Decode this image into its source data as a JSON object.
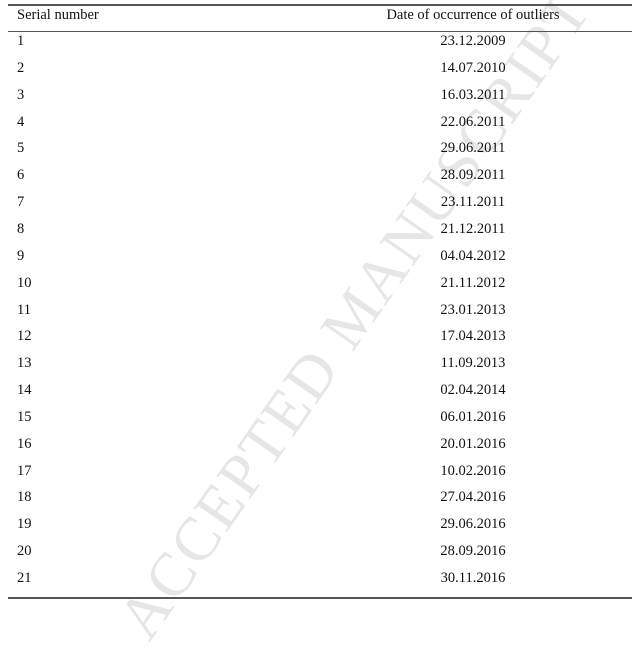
{
  "watermark": "ACCEPTED MANUSCRIPT",
  "table": {
    "headers": [
      "Serial number",
      "Date of occurrence of outliers"
    ],
    "rows": [
      [
        "1",
        "23.12.2009"
      ],
      [
        "2",
        "14.07.2010"
      ],
      [
        "3",
        "16.03.2011"
      ],
      [
        "4",
        "22.06.2011"
      ],
      [
        "5",
        "29.06.2011"
      ],
      [
        "6",
        "28.09.2011"
      ],
      [
        "7",
        "23.11.2011"
      ],
      [
        "8",
        "21.12.2011"
      ],
      [
        "9",
        "04.04.2012"
      ],
      [
        "10",
        "21.11.2012"
      ],
      [
        "11",
        "23.01.2013"
      ],
      [
        "12",
        "17.04.2013"
      ],
      [
        "13",
        "11.09.2013"
      ],
      [
        "14",
        "02.04.2014"
      ],
      [
        "15",
        "06.01.2016"
      ],
      [
        "16",
        "20.01.2016"
      ],
      [
        "17",
        "10.02.2016"
      ],
      [
        "18",
        "27.04.2016"
      ],
      [
        "19",
        "29.06.2016"
      ],
      [
        "20",
        "28.09.2016"
      ],
      [
        "21",
        "30.11.2016"
      ]
    ]
  }
}
